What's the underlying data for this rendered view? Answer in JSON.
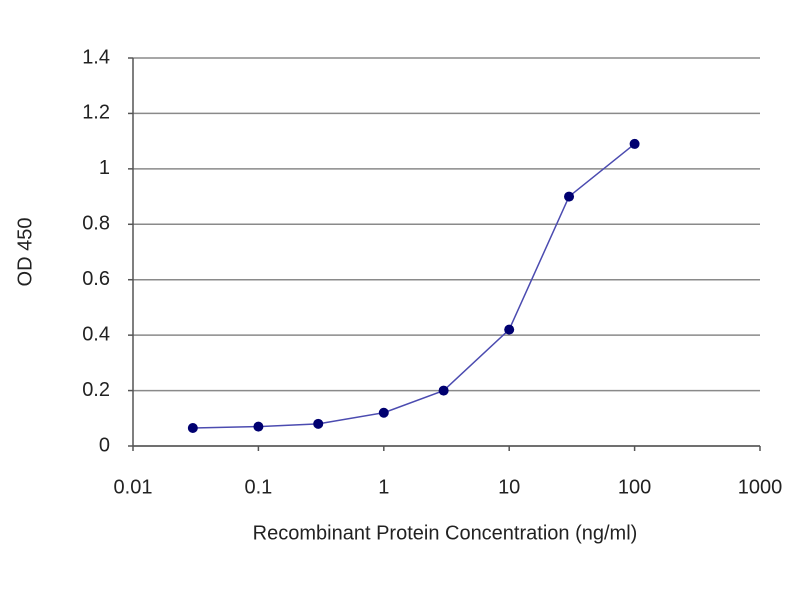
{
  "chart_data": {
    "type": "line",
    "x_label": "Recombinant Protein Concentration (ng/ml)",
    "y_label": "OD 450",
    "x": [
      0.03,
      0.1,
      0.3,
      1,
      3,
      10,
      30,
      100
    ],
    "values": [
      0.065,
      0.07,
      0.08,
      0.12,
      0.2,
      0.42,
      0.9,
      1.09
    ],
    "color": "#4b4bb0",
    "marker_color": "#000070",
    "xscale": "log",
    "xlim": [
      0.01,
      1000
    ],
    "xticks": [
      0.01,
      0.1,
      1,
      10,
      100,
      1000
    ],
    "ylim": [
      0,
      1.4
    ],
    "yticks": [
      0,
      0.2,
      0.4,
      0.6,
      0.8,
      1,
      1.2,
      1.4
    ],
    "grid": true
  }
}
